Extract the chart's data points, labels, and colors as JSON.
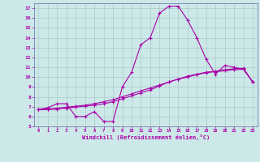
{
  "xlabel": "Windchill (Refroidissement éolien,°C)",
  "background_color": "#cce8e8",
  "line_color": "#aa00aa",
  "spine_color": "#6666aa",
  "grid_color": "#aacccc",
  "xlim": [
    -0.5,
    23.5
  ],
  "ylim": [
    5,
    17.5
  ],
  "xticks": [
    0,
    1,
    2,
    3,
    4,
    5,
    6,
    7,
    8,
    9,
    10,
    11,
    12,
    13,
    14,
    15,
    16,
    17,
    18,
    19,
    20,
    21,
    22,
    23
  ],
  "yticks": [
    5,
    6,
    7,
    8,
    9,
    10,
    11,
    12,
    13,
    14,
    15,
    16,
    17
  ],
  "series1_x": [
    0,
    1,
    2,
    3,
    4,
    5,
    6,
    7,
    8,
    9,
    10,
    11,
    12,
    13,
    14,
    15,
    16,
    17,
    18,
    19,
    20,
    21,
    22,
    23
  ],
  "series1_y": [
    6.7,
    6.9,
    7.3,
    7.3,
    6.0,
    6.0,
    6.5,
    5.5,
    5.5,
    9.0,
    10.5,
    13.3,
    14.0,
    16.5,
    17.2,
    17.2,
    15.8,
    14.0,
    11.8,
    10.3,
    11.2,
    11.0,
    10.8,
    9.5
  ],
  "series2_x": [
    0,
    1,
    2,
    3,
    4,
    5,
    6,
    7,
    8,
    9,
    10,
    11,
    12,
    13,
    14,
    15,
    16,
    17,
    18,
    19,
    20,
    21,
    22,
    23
  ],
  "series2_y": [
    6.7,
    6.7,
    6.75,
    6.85,
    6.95,
    7.05,
    7.15,
    7.3,
    7.5,
    7.8,
    8.1,
    8.4,
    8.7,
    9.1,
    9.5,
    9.8,
    10.1,
    10.3,
    10.5,
    10.6,
    10.75,
    10.85,
    10.9,
    9.5
  ],
  "series3_x": [
    0,
    1,
    2,
    3,
    4,
    5,
    6,
    7,
    8,
    9,
    10,
    11,
    12,
    13,
    14,
    15,
    16,
    17,
    18,
    19,
    20,
    21,
    22,
    23
  ],
  "series3_y": [
    6.7,
    6.75,
    6.85,
    6.95,
    7.05,
    7.15,
    7.3,
    7.5,
    7.7,
    8.0,
    8.3,
    8.6,
    8.9,
    9.2,
    9.5,
    9.8,
    10.0,
    10.25,
    10.45,
    10.55,
    10.65,
    10.75,
    10.8,
    9.5
  ]
}
